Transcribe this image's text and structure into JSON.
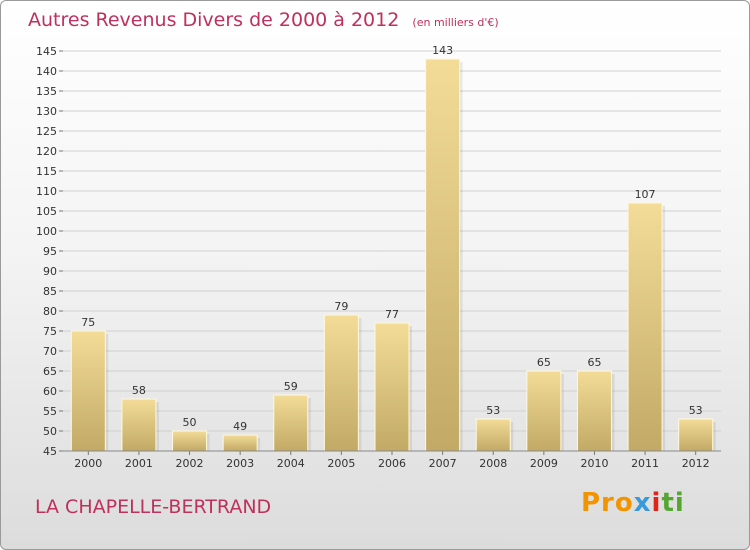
{
  "header": {
    "title": "Autres Revenus Divers de 2000 à 2012",
    "subtitle": "(en milliers d'€)"
  },
  "footer": {
    "place": "LA CHAPELLE-BERTRAND",
    "logo": [
      "Pro",
      "x",
      "i",
      "ti"
    ]
  },
  "colors": {
    "title": "#c0305c",
    "bar_top": "#f3dc97",
    "bar_bottom": "#c2aa66",
    "grid": "#d0d0d0",
    "axis_text": "#333333"
  },
  "chart_data": {
    "type": "bar",
    "categories": [
      "2000",
      "2001",
      "2002",
      "2003",
      "2004",
      "2005",
      "2006",
      "2007",
      "2008",
      "2009",
      "2010",
      "2011",
      "2012"
    ],
    "values": [
      75,
      58,
      50,
      49,
      59,
      79,
      77,
      143,
      53,
      65,
      65,
      107,
      53
    ],
    "data_labels": [
      "75",
      "58",
      "50",
      "49",
      "59",
      "79",
      "77",
      "143",
      "53",
      "65",
      "65",
      "107",
      "53"
    ],
    "yticks": [
      "45",
      "50",
      "55",
      "60",
      "65",
      "70",
      "75",
      "80",
      "85",
      "90",
      "95",
      "100",
      "105",
      "110",
      "115",
      "120",
      "125",
      "130",
      "135",
      "140",
      "145"
    ],
    "ylim": [
      45,
      145
    ],
    "grid": true,
    "legend": "none"
  }
}
